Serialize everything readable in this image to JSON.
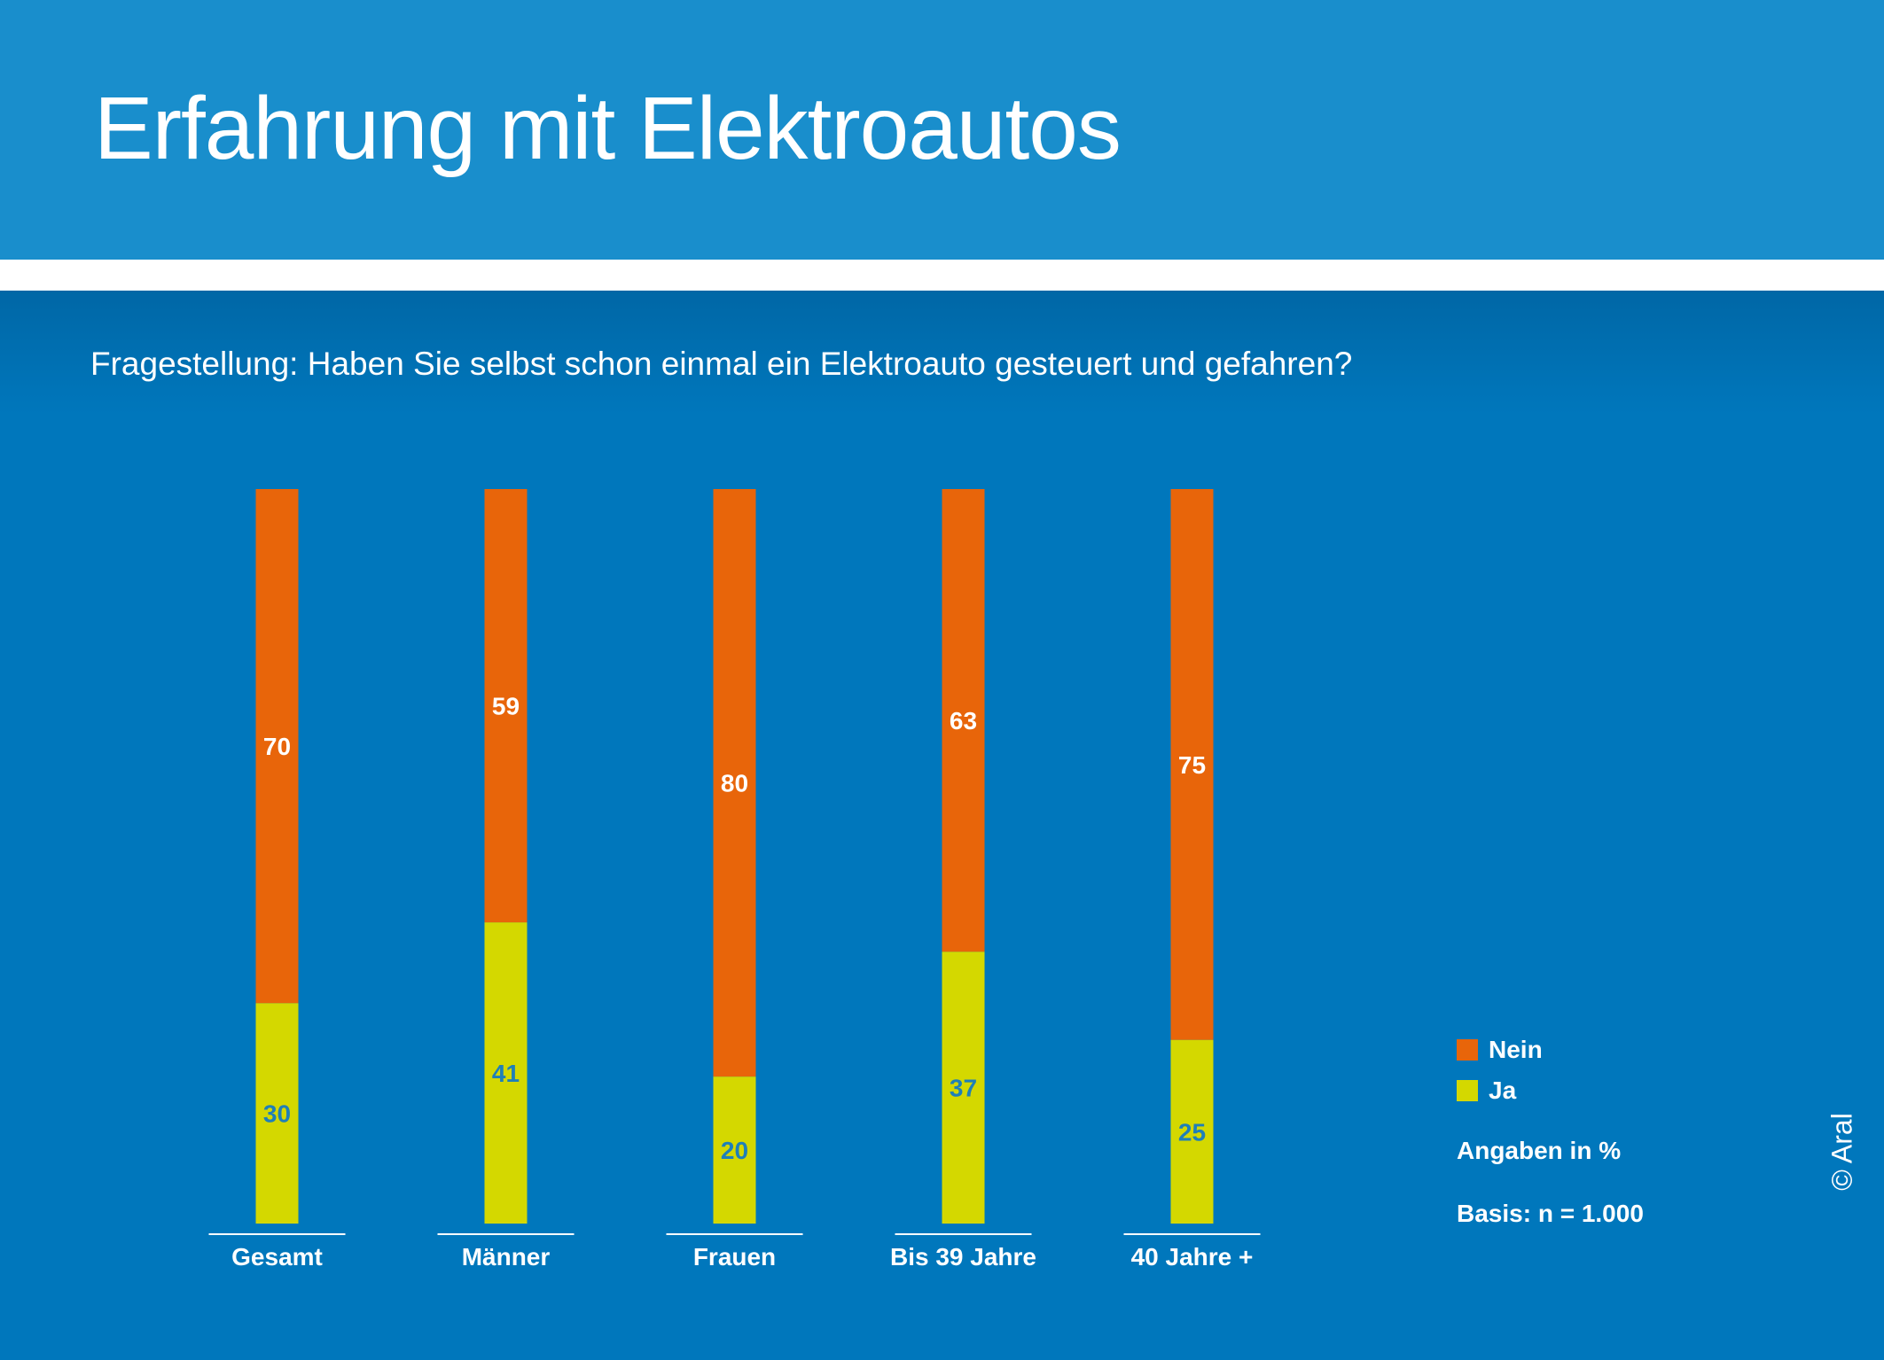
{
  "header": {
    "title": "Erfahrung mit Elektroautos"
  },
  "question": "Fragestellung: Haben Sie selbst schon einmal ein Elektroauto gesteuert und gefahren?",
  "legend": {
    "nein": "Nein",
    "ja": "Ja"
  },
  "notes": {
    "unit": "Angaben in %",
    "basis": "Basis: n = 1.000"
  },
  "copyright": "© Aral",
  "colors": {
    "background": "#0077bc",
    "header": "#198ecc",
    "nein": "#e8650a",
    "ja": "#d4d800",
    "ja_label": "#1f7fb8"
  },
  "chart_data": {
    "type": "bar",
    "stacked": true,
    "categories": [
      "Gesamt",
      "Männer",
      "Frauen",
      "Bis 39 Jahre",
      "40 Jahre +"
    ],
    "series": [
      {
        "name": "Ja",
        "values": [
          30,
          41,
          20,
          37,
          25
        ]
      },
      {
        "name": "Nein",
        "values": [
          70,
          59,
          80,
          63,
          75
        ]
      }
    ],
    "ylim": [
      0,
      100
    ],
    "grid": false,
    "legend_position": "bottom-right"
  }
}
